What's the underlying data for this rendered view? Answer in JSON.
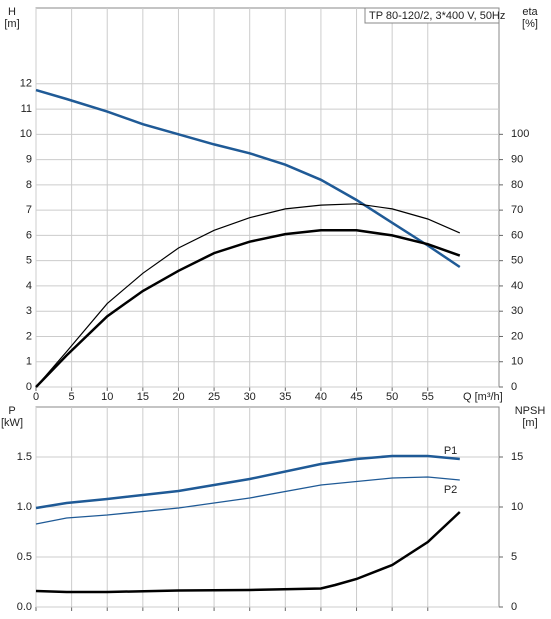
{
  "chart_data": [
    {
      "type": "line",
      "title": "TP 80-120/2, 3*400 V, 50Hz",
      "y_label": [
        "H",
        "[m]"
      ],
      "y2_label": [
        "eta",
        "[%]"
      ],
      "x_label": "Q [m³/h]",
      "xlim": [
        0,
        65
      ],
      "xticks": [
        0,
        5,
        10,
        15,
        20,
        25,
        30,
        35,
        40,
        45,
        50,
        55
      ],
      "ylim": [
        0,
        15
      ],
      "yticks": [
        0,
        1,
        2,
        3,
        4,
        5,
        6,
        7,
        8,
        9,
        10,
        11,
        12
      ],
      "y2lim": [
        0,
        150
      ],
      "y2ticks": [
        0,
        10,
        20,
        30,
        40,
        50,
        60,
        70,
        80,
        90,
        100
      ],
      "grid": true,
      "series": [
        {
          "color": "#1f5a96",
          "x": [
            0,
            4.3,
            10,
            15,
            20,
            25,
            30,
            35,
            40,
            45,
            50,
            55,
            59.5
          ],
          "values": [
            11.75,
            11.4,
            10.9,
            10.4,
            10.0,
            9.6,
            9.25,
            8.8,
            8.2,
            7.4,
            6.5,
            5.6,
            4.75
          ]
        },
        {
          "color": "#000000",
          "axis": "y2",
          "x": [
            0,
            4.3,
            10,
            15,
            20,
            25,
            30,
            35,
            40,
            45,
            50,
            55,
            59.5
          ],
          "values": [
            0,
            14,
            33,
            45,
            55,
            62,
            67,
            70.5,
            72,
            72.5,
            70.5,
            66.5,
            61
          ]
        },
        {
          "color": "#000000",
          "axis": "y2",
          "x": [
            0,
            4.3,
            10,
            15,
            20,
            25,
            30,
            35,
            40,
            45,
            50,
            55,
            59.5
          ],
          "values": [
            0,
            12.5,
            28,
            38,
            46,
            53,
            57.5,
            60.5,
            62,
            62,
            60,
            56.5,
            52
          ]
        }
      ]
    },
    {
      "type": "line",
      "y_label": [
        "P",
        "[kW]"
      ],
      "y2_label": [
        "NPSH",
        "[m]"
      ],
      "xlim": [
        0,
        65
      ],
      "xticks": [
        0,
        5,
        10,
        15,
        20,
        25,
        30,
        35,
        40,
        45,
        50,
        55
      ],
      "ylim": [
        0,
        2
      ],
      "yticks": [
        {
          "value": 0,
          "label": "0.0"
        },
        {
          "value": 0.5,
          "label": "0.5"
        },
        {
          "value": 1,
          "label": "1.0"
        },
        {
          "value": 1.5,
          "label": "1.5"
        }
      ],
      "y2lim": [
        0,
        20
      ],
      "y2ticks": [
        0,
        5,
        10,
        15
      ],
      "grid": true,
      "series": [
        {
          "name": "P1",
          "color": "#1f5a96",
          "x": [
            0,
            4.3,
            10,
            20,
            30,
            40,
            45,
            50,
            55,
            59.5
          ],
          "values": [
            0.99,
            1.04,
            1.08,
            1.16,
            1.28,
            1.43,
            1.48,
            1.51,
            1.51,
            1.48
          ]
        },
        {
          "name": "P2",
          "color": "#1f5a96",
          "x": [
            0,
            4.3,
            10,
            20,
            30,
            40,
            50,
            55,
            59.5
          ],
          "values": [
            0.83,
            0.89,
            0.92,
            0.99,
            1.09,
            1.22,
            1.29,
            1.3,
            1.27
          ]
        },
        {
          "color": "#000000",
          "axis": "y2",
          "x": [
            0,
            4.3,
            10,
            20,
            30,
            40,
            42,
            45,
            50,
            55,
            59.5
          ],
          "values": [
            1.6,
            1.5,
            1.5,
            1.65,
            1.7,
            1.85,
            2.2,
            2.8,
            4.2,
            6.5,
            9.5
          ]
        }
      ]
    }
  ]
}
